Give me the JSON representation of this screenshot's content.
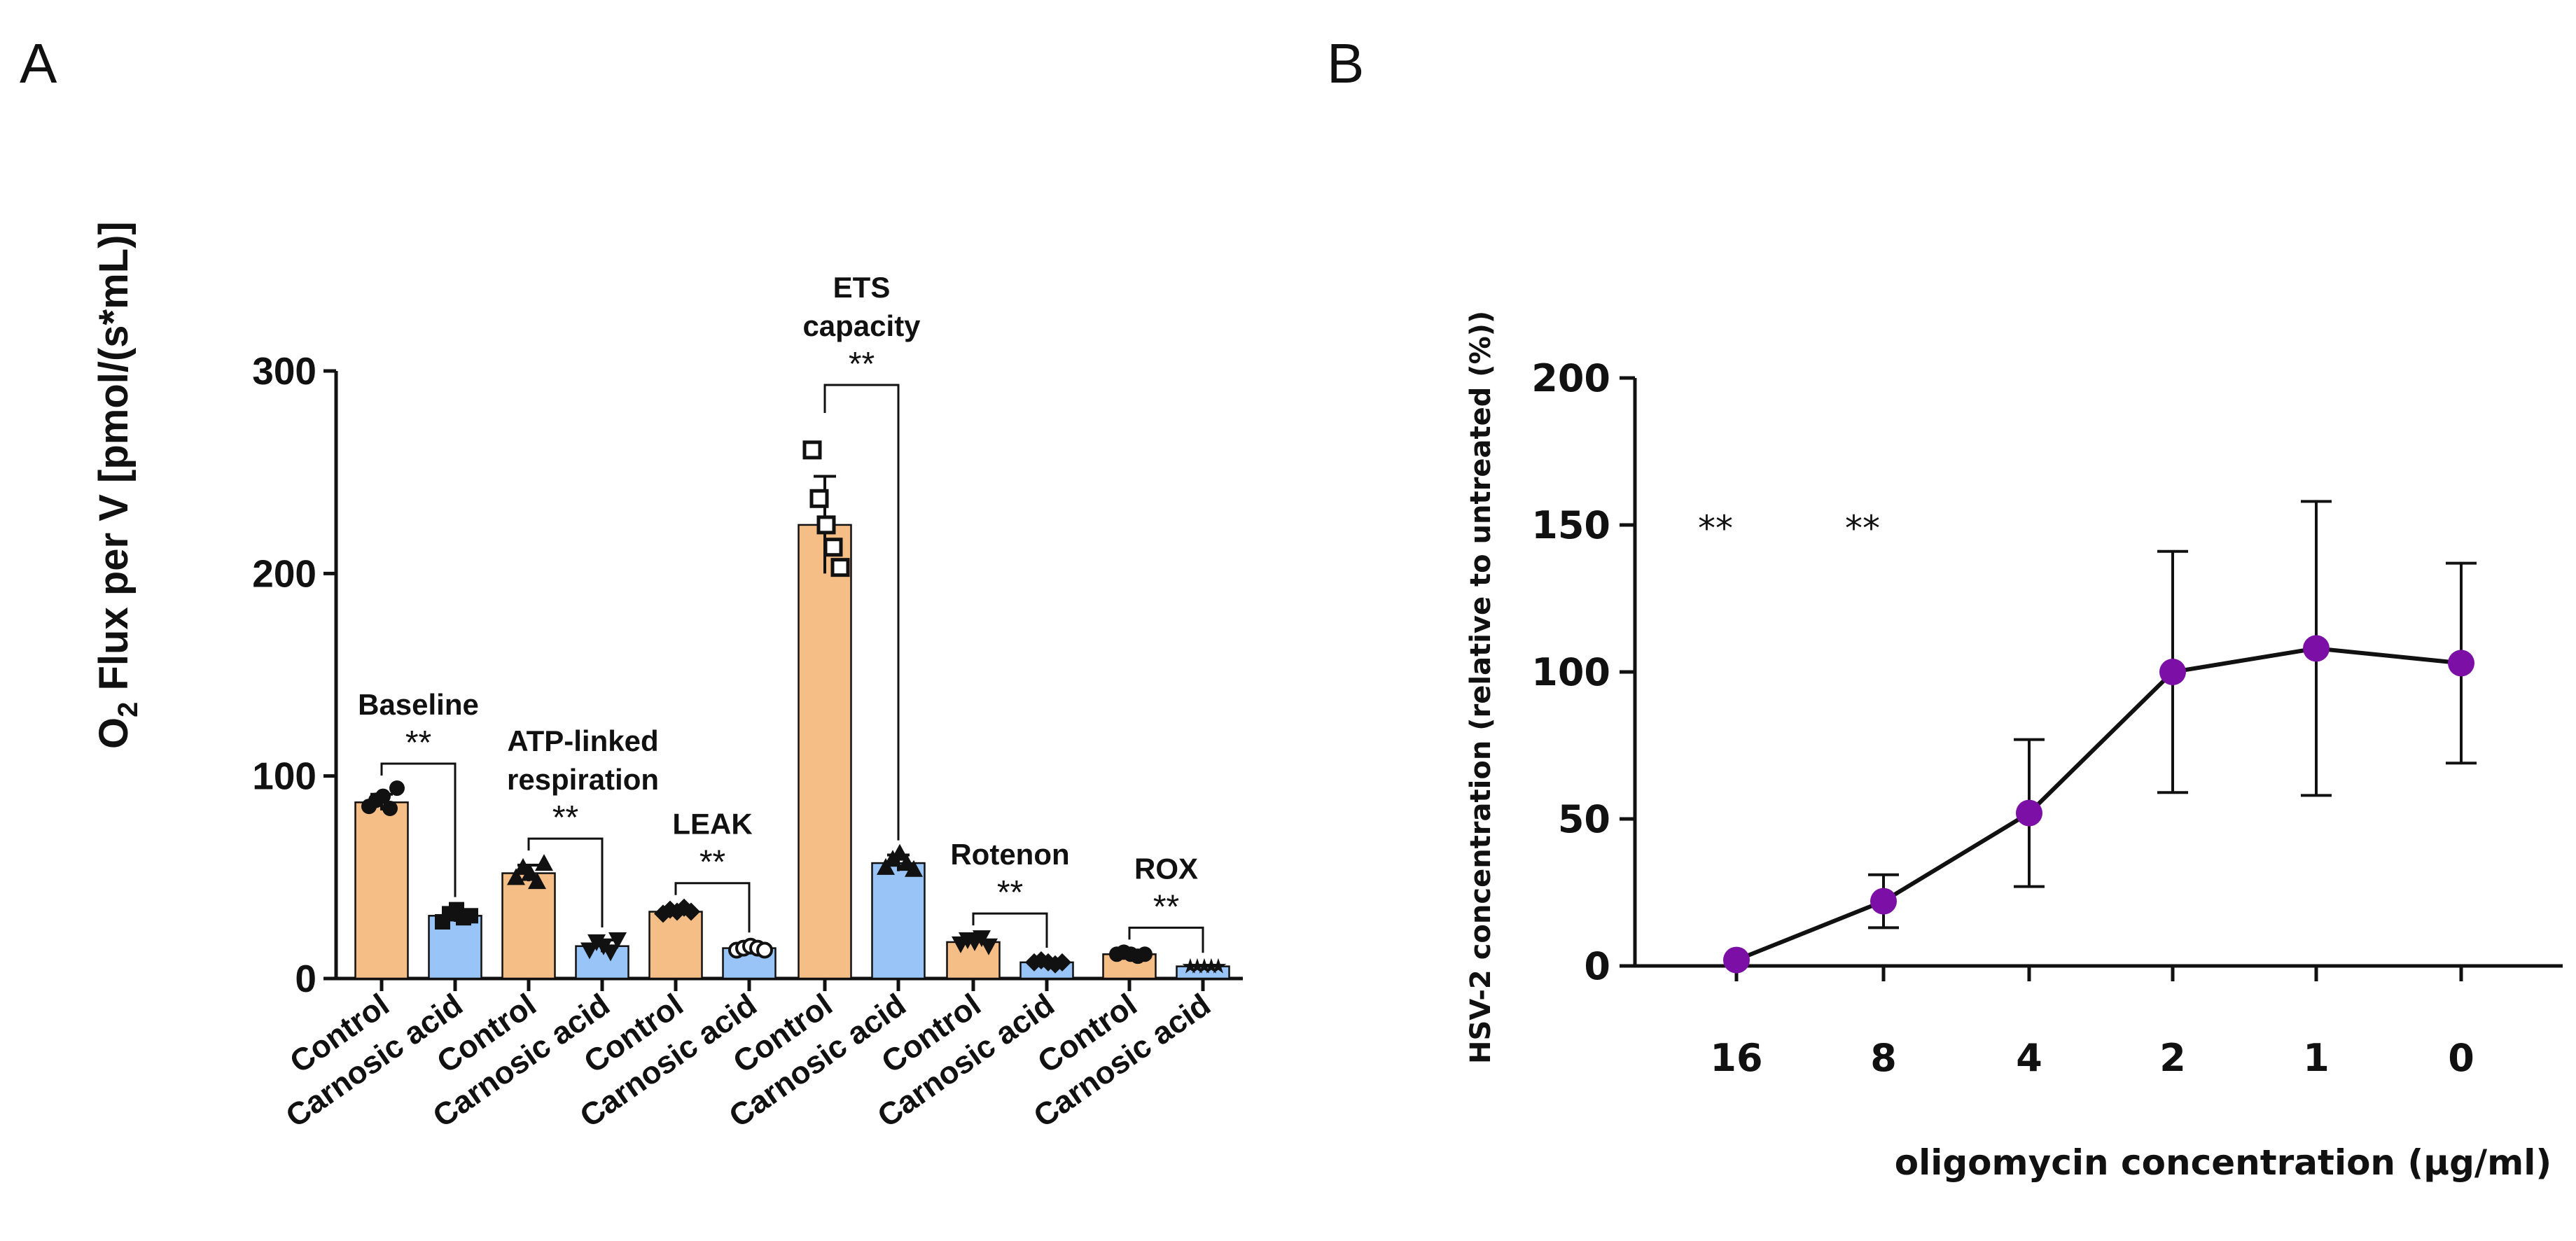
{
  "panels": {
    "a_label": "A",
    "b_label": "B"
  },
  "chart_data": [
    {
      "type": "bar",
      "ylabel_main": "O",
      "ylabel_sub": "2",
      "ylabel_rest": " Flux per V [pmol/(s*mL)]",
      "ylim": [
        0,
        300
      ],
      "yticks": [
        0,
        100,
        200,
        300
      ],
      "series_colors": {
        "Control": "#f4be86",
        "Carnosic acid": "#98c4f7"
      },
      "groups": [
        {
          "label_lines": [
            "Baseline"
          ],
          "significance": "**",
          "bars": [
            {
              "category": "Control",
              "value": 87,
              "error": 4,
              "points": [
                85,
                88,
                90,
                84,
                94
              ],
              "marker": "circle"
            },
            {
              "category": "Carnosic acid",
              "value": 31,
              "error": 3,
              "points": [
                28,
                32,
                34,
                30,
                31
              ],
              "marker": "square"
            }
          ]
        },
        {
          "label_lines": [
            "ATP-linked",
            "respiration"
          ],
          "significance": "**",
          "bars": [
            {
              "category": "Control",
              "value": 52,
              "error": 4,
              "points": [
                50,
                55,
                52,
                48,
                57
              ],
              "marker": "triangle"
            },
            {
              "category": "Carnosic acid",
              "value": 16,
              "error": 3,
              "points": [
                14,
                18,
                16,
                13,
                19
              ],
              "marker": "triangle-down"
            }
          ]
        },
        {
          "label_lines": [
            "LEAK"
          ],
          "significance": "**",
          "bars": [
            {
              "category": "Control",
              "value": 33,
              "error": 1.5,
              "points": [
                32,
                34,
                33,
                35,
                33
              ],
              "marker": "diamond"
            },
            {
              "category": "Carnosic acid",
              "value": 15,
              "error": 1.5,
              "points": [
                14,
                15,
                16,
                15,
                14
              ],
              "marker": "circle-open"
            }
          ]
        },
        {
          "label_lines": [
            "ETS",
            "capacity"
          ],
          "significance": "**",
          "bars": [
            {
              "category": "Control",
              "value": 224,
              "error": 24,
              "points": [
                261,
                237,
                224,
                213,
                203
              ],
              "marker": "square-open"
            },
            {
              "category": "Carnosic acid",
              "value": 57,
              "error": 4,
              "points": [
                55,
                59,
                62,
                57,
                54
              ],
              "marker": "triangle"
            }
          ]
        },
        {
          "label_lines": [
            "Rotenon"
          ],
          "significance": "**",
          "bars": [
            {
              "category": "Control",
              "value": 18,
              "error": 2,
              "points": [
                17,
                19,
                18,
                20,
                16
              ],
              "marker": "triangle-down"
            },
            {
              "category": "Carnosic acid",
              "value": 8,
              "error": 1,
              "points": [
                8,
                9,
                8,
                7,
                8
              ],
              "marker": "diamond"
            }
          ]
        },
        {
          "label_lines": [
            "ROX"
          ],
          "significance": "**",
          "bars": [
            {
              "category": "Control",
              "value": 12,
              "error": 1,
              "points": [
                12,
                13,
                12,
                11,
                12
              ],
              "marker": "circle"
            },
            {
              "category": "Carnosic acid",
              "value": 6,
              "error": 0.5,
              "points": [
                6,
                6,
                6,
                6,
                6
              ],
              "marker": "star"
            }
          ]
        }
      ]
    },
    {
      "type": "line",
      "xlabel": "oligomycin concentration (µg/ml)",
      "ylabel": "HSV-2 concentration (relative to untreated (%))",
      "ylim": [
        0,
        200
      ],
      "yticks": [
        0,
        50,
        100,
        150,
        200
      ],
      "categories": [
        "16",
        "8",
        "4",
        "2",
        "1",
        "0"
      ],
      "values": [
        2,
        22,
        52,
        100,
        108,
        103
      ],
      "errors": [
        0,
        9,
        25,
        41,
        50,
        34
      ],
      "significance": [
        {
          "category": "16",
          "label": "**"
        },
        {
          "category": "8",
          "label": "**"
        }
      ],
      "color": "#7b0fa6"
    }
  ]
}
